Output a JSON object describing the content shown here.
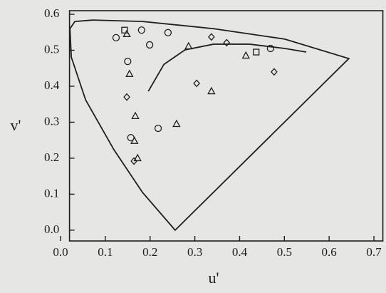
{
  "chart_data": {
    "type": "scatter",
    "xlabel": "u'",
    "ylabel": "v'",
    "xlim": [
      0.02,
      0.72
    ],
    "ylim": [
      -0.03,
      0.61
    ],
    "xticks": [
      {
        "value": 0.0,
        "label": "0.0"
      },
      0.1,
      0.2,
      0.3,
      0.4,
      0.5,
      0.6,
      0.7
    ],
    "yticks": [
      {
        "value": 0.0,
        "label": "0.0"
      },
      0.1,
      0.2,
      0.3,
      0.4,
      0.5,
      0.6
    ],
    "color": "#1e1e1e",
    "curves": [
      {
        "closed": true,
        "x": [
          0.256,
          0.183,
          0.119,
          0.056,
          0.024,
          0.021,
          0.032,
          0.072,
          0.183,
          0.342,
          0.501,
          0.644
        ],
        "values": [
          0.0,
          0.105,
          0.224,
          0.362,
          0.481,
          0.56,
          0.58,
          0.584,
          0.58,
          0.56,
          0.531,
          0.477
        ]
      },
      {
        "closed": false,
        "x": [
          0.196,
          0.231,
          0.278,
          0.342,
          0.422,
          0.501,
          0.549
        ],
        "values": [
          0.386,
          0.461,
          0.501,
          0.517,
          0.517,
          0.505,
          0.495
        ]
      }
    ],
    "series": [
      {
        "marker": "circle",
        "x": [
          0.124,
          0.181,
          0.24,
          0.199,
          0.15,
          0.218,
          0.157,
          0.469
        ],
        "values": [
          0.535,
          0.556,
          0.549,
          0.515,
          0.469,
          0.283,
          0.257,
          0.505
        ]
      },
      {
        "marker": "square",
        "x": [
          0.143,
          0.437
        ],
        "values": [
          0.556,
          0.495
        ]
      },
      {
        "marker": "triangle",
        "x": [
          0.148,
          0.286,
          0.414,
          0.154,
          0.167,
          0.259,
          0.337,
          0.172,
          0.165
        ],
        "values": [
          0.545,
          0.511,
          0.485,
          0.434,
          0.317,
          0.295,
          0.386,
          0.2,
          0.248
        ]
      },
      {
        "marker": "diamond",
        "x": [
          0.148,
          0.337,
          0.371,
          0.477,
          0.304,
          0.164
        ],
        "values": [
          0.37,
          0.537,
          0.521,
          0.44,
          0.408,
          0.192
        ]
      }
    ]
  }
}
